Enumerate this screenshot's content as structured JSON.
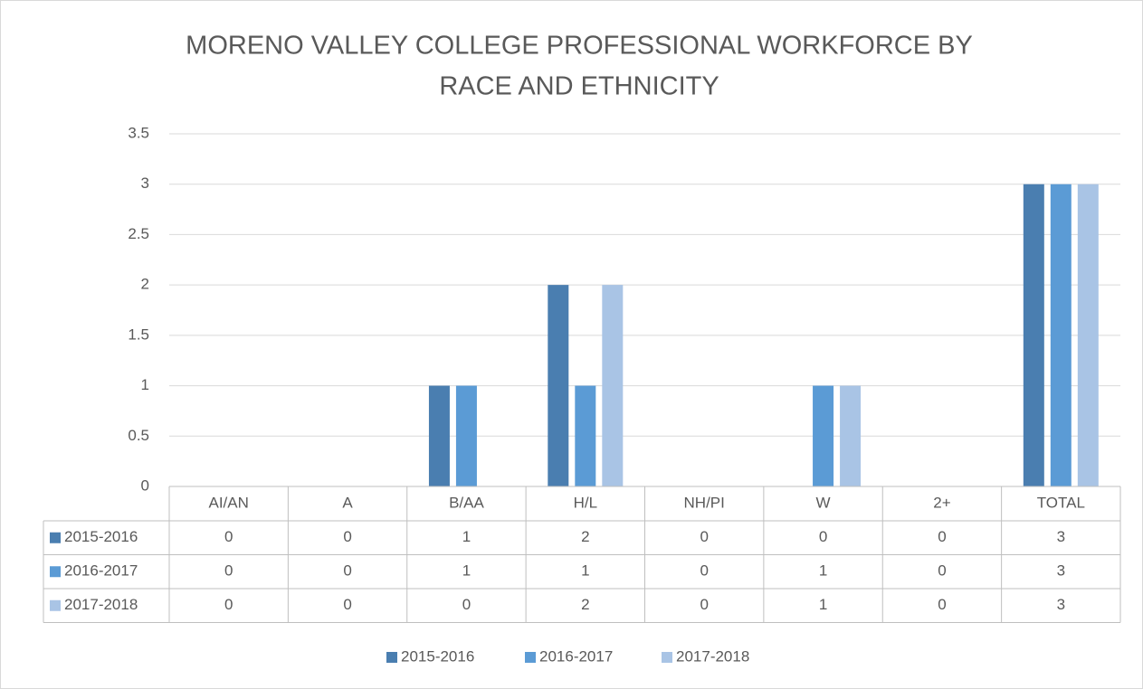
{
  "chart_data": {
    "type": "bar",
    "title": [
      "MORENO VALLEY COLLEGE PROFESSIONAL WORKFORCE BY",
      "RACE AND ETHNICITY"
    ],
    "categories": [
      "AI/AN",
      "A",
      "B/AA",
      "H/L",
      "NH/PI",
      "W",
      "2+",
      "TOTAL"
    ],
    "series": [
      {
        "name": "2015-2016",
        "color": "#4a7eb0",
        "values": [
          0,
          0,
          1,
          2,
          0,
          0,
          0,
          3
        ]
      },
      {
        "name": "2016-2017",
        "color": "#5b9bd5",
        "values": [
          0,
          0,
          1,
          1,
          0,
          1,
          0,
          3
        ]
      },
      {
        "name": "2017-2018",
        "color": "#a9c4e5",
        "values": [
          0,
          0,
          0,
          2,
          0,
          1,
          0,
          3
        ]
      }
    ],
    "ylim": [
      0,
      3.5
    ],
    "yticks": [
      0,
      0.5,
      1,
      1.5,
      2,
      2.5,
      3,
      3.5
    ],
    "grid": true
  }
}
